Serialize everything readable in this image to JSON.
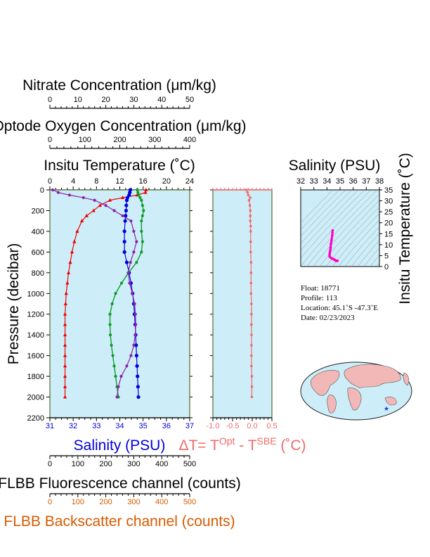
{
  "top_axes": {
    "nitrate": {
      "label": "Nitrate Concentration (μm/kg)",
      "ticks": [
        "0",
        "10",
        "20",
        "30",
        "40",
        "50"
      ],
      "range": [
        0,
        50
      ]
    },
    "oxygen": {
      "label": "Optode Oxygen Concentration (μm/kg)",
      "ticks": [
        "0",
        "100",
        "200",
        "300",
        "400"
      ],
      "range": [
        0,
        400
      ]
    },
    "temperature": {
      "label": "Insitu Temperature (˚C)",
      "ticks": [
        "0",
        "4",
        "8",
        "12",
        "16",
        "20",
        "24"
      ],
      "range": [
        0,
        24
      ]
    }
  },
  "bottom_axes": {
    "salinity": {
      "label": "Salinity (PSU)",
      "ticks": [
        "31",
        "32",
        "33",
        "34",
        "35",
        "36",
        "37"
      ],
      "range": [
        31,
        37
      ]
    },
    "fluorescence": {
      "label": "FLBB Fluorescence channel (counts)",
      "ticks": [
        "0",
        "100",
        "200",
        "300",
        "400",
        "500"
      ],
      "range": [
        0,
        500
      ]
    },
    "backscatter": {
      "label": "FLBB Backscatter channel (counts)",
      "ticks": [
        "0",
        "100",
        "200",
        "300",
        "400",
        "500"
      ],
      "range": [
        0,
        500
      ]
    }
  },
  "pressure_axis": {
    "label": "Pressure (decibar)",
    "ticks": [
      "0",
      "200",
      "400",
      "600",
      "800",
      "1000",
      "1200",
      "1400",
      "1600",
      "1800",
      "2000",
      "2200"
    ],
    "range": [
      0,
      2200
    ]
  },
  "delta_axis": {
    "label_prefix": "ΔT= T",
    "sup1": "Opt",
    "label_mid": " - T",
    "sup2": "SBE",
    "label_suffix": " (˚C)",
    "ticks": [
      "-1.0",
      "-0.5",
      "0.0",
      "0.5"
    ],
    "range": [
      -1.0,
      0.5
    ]
  },
  "ts_plot": {
    "title": "Salinity (PSU)",
    "ylabel": "Insitu Temperature (˚C)",
    "x_ticks": [
      "32",
      "33",
      "34",
      "35",
      "36",
      "37",
      "38"
    ],
    "y_ticks": [
      "0",
      "5",
      "10",
      "15",
      "20",
      "25",
      "30",
      "35"
    ],
    "xlim": [
      32,
      38
    ],
    "ylim": [
      0,
      35
    ]
  },
  "info": {
    "float": "Float:  18771",
    "profile": "Profile:  113",
    "location": "Location:  45.1˚S  -47.3˚E",
    "date": "Date:  02/23/2023"
  },
  "colors": {
    "temperature": "#ee0000",
    "salinity": "#0000dd",
    "oxygen": "#109a2a",
    "nitrate": "#8a22a8",
    "delta": "#f06a6a",
    "backscatter": "#d85a00",
    "panel_bg": "#cdeef8",
    "frame": "#556b2f"
  },
  "chart_data": {
    "type": "line",
    "pressure": [
      0,
      25,
      50,
      75,
      100,
      150,
      200,
      250,
      300,
      400,
      500,
      600,
      700,
      800,
      900,
      1000,
      1100,
      1200,
      1300,
      1400,
      1500,
      1600,
      1700,
      1800,
      1900,
      2000
    ],
    "series": [
      {
        "name": "temperature",
        "values": [
          16.5,
          16.4,
          15.0,
          12.5,
          10.3,
          8.6,
          7.5,
          6.3,
          5.5,
          4.7,
          4.2,
          3.8,
          3.5,
          3.2,
          3.0,
          2.8,
          2.7,
          2.6,
          2.6,
          2.6,
          2.6,
          2.6,
          2.6,
          2.6,
          2.6,
          2.6
        ]
      },
      {
        "name": "salinity",
        "values": [
          34.45,
          34.43,
          34.4,
          34.33,
          34.3,
          34.28,
          34.27,
          34.25,
          34.23,
          34.2,
          34.2,
          34.2,
          34.3,
          34.4,
          34.48,
          34.55,
          34.6,
          34.63,
          34.66,
          34.68,
          34.7,
          34.72,
          34.74,
          34.76,
          34.78,
          34.8
        ]
      },
      {
        "name": "oxygen",
        "values": [
          250,
          252,
          254,
          258,
          262,
          265,
          268,
          265,
          262,
          262,
          265,
          262,
          248,
          225,
          205,
          188,
          178,
          172,
          172,
          173,
          176,
          180,
          184,
          188,
          192,
          196
        ]
      },
      {
        "name": "nitrate",
        "values": [
          1,
          3,
          7,
          12,
          16,
          20,
          23,
          26,
          29,
          30,
          31,
          30,
          28.8,
          28.0,
          28.5,
          29.5,
          30.3,
          30.6,
          30.7,
          30.5,
          30.0,
          29.0,
          27.5,
          25.5,
          24.5,
          24.0
        ]
      }
    ],
    "delta_t": {
      "pressure": [
        0,
        25,
        50,
        75,
        100,
        150,
        200,
        250,
        300,
        350,
        400,
        500,
        600,
        700,
        800,
        900,
        1000,
        1100,
        1200,
        1300,
        1400,
        1500,
        1600,
        1700,
        1800,
        1900,
        2000
      ],
      "values": [
        -0.15,
        -0.12,
        -0.1,
        -0.05,
        -0.08,
        -0.06,
        -0.05,
        -0.05,
        -0.05,
        -0.04,
        -0.04,
        -0.04,
        -0.04,
        -0.03,
        -0.03,
        -0.03,
        -0.03,
        -0.02,
        -0.02,
        -0.02,
        -0.02,
        -0.02,
        -0.02,
        -0.02,
        -0.01,
        -0.01,
        -0.01
      ]
    },
    "ts_points": {
      "salinity": [
        34.43,
        34.42,
        34.4,
        34.35,
        34.3,
        34.28,
        34.25,
        34.22,
        34.2,
        34.2,
        34.25,
        34.35,
        34.45,
        34.55,
        34.6,
        34.65,
        34.68,
        34.7,
        34.72,
        34.75,
        34.78,
        34.8
      ],
      "temperature": [
        16.5,
        15.5,
        14.0,
        12.0,
        10.3,
        8.6,
        7.5,
        6.3,
        5.5,
        4.7,
        4.2,
        3.8,
        3.5,
        3.2,
        3.0,
        2.8,
        2.7,
        2.6,
        2.6,
        2.6,
        2.6,
        2.6
      ]
    }
  }
}
